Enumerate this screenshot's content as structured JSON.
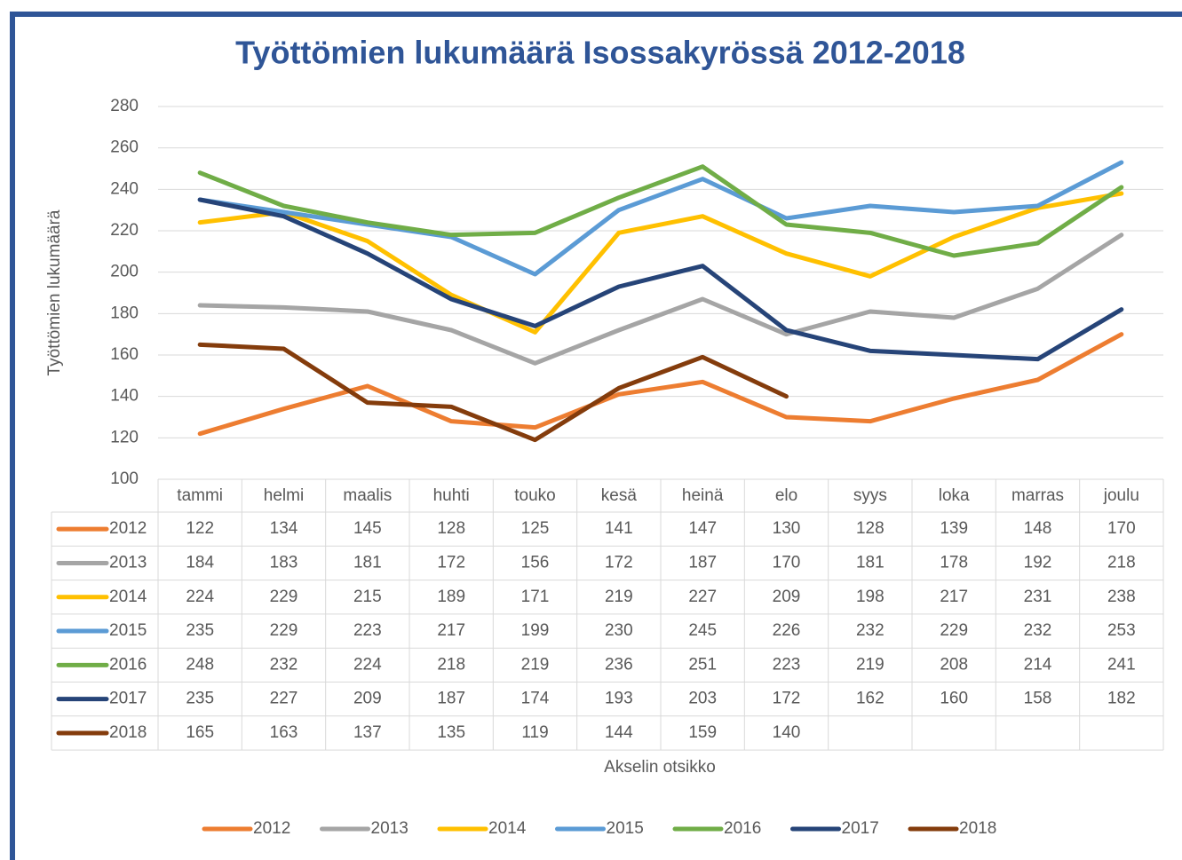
{
  "chart_data": {
    "type": "line",
    "title": "Työttömien lukumäärä Isossakyrössä 2012-2018",
    "y_label": "Työttömien lukumäärä",
    "x_label": "Akselin otsikko",
    "categories": [
      "tammi",
      "helmi",
      "maalis",
      "huhti",
      "touko",
      "kesä",
      "heinä",
      "elo",
      "syys",
      "loka",
      "marras",
      "joulu"
    ],
    "series": [
      {
        "name": "2012",
        "color": "#ed7d31",
        "values": [
          122,
          134,
          145,
          128,
          125,
          141,
          147,
          130,
          128,
          139,
          148,
          170
        ]
      },
      {
        "name": "2013",
        "color": "#a5a5a5",
        "values": [
          184,
          183,
          181,
          172,
          156,
          172,
          187,
          170,
          181,
          178,
          192,
          218
        ]
      },
      {
        "name": "2014",
        "color": "#ffc000",
        "values": [
          224,
          229,
          215,
          189,
          171,
          219,
          227,
          209,
          198,
          217,
          231,
          238
        ]
      },
      {
        "name": "2015",
        "color": "#5b9bd5",
        "values": [
          235,
          229,
          223,
          217,
          199,
          230,
          245,
          226,
          232,
          229,
          232,
          253
        ]
      },
      {
        "name": "2016",
        "color": "#70ad47",
        "values": [
          248,
          232,
          224,
          218,
          219,
          236,
          251,
          223,
          219,
          208,
          214,
          241
        ]
      },
      {
        "name": "2017",
        "color": "#264478",
        "values": [
          235,
          227,
          209,
          187,
          174,
          193,
          203,
          172,
          162,
          160,
          158,
          182
        ]
      },
      {
        "name": "2018",
        "color": "#843c0c",
        "values": [
          165,
          163,
          137,
          135,
          119,
          144,
          159,
          140,
          null,
          null,
          null,
          null
        ]
      }
    ],
    "ylim": [
      100,
      280
    ],
    "yticks": [
      100,
      120,
      140,
      160,
      180,
      200,
      220,
      240,
      260,
      280
    ],
    "grid": true
  }
}
